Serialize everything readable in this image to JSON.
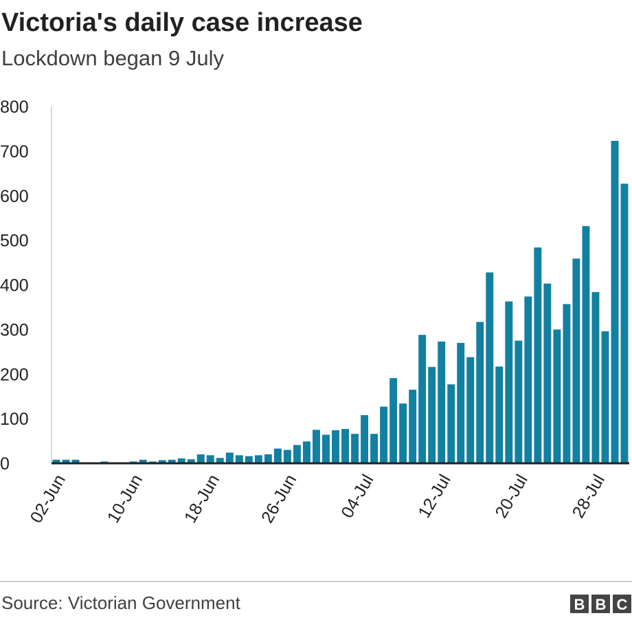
{
  "chart_data": {
    "type": "bar",
    "title": "Victoria's daily case increase",
    "subtitle": "Lockdown began 9 July",
    "source": "Source: Victorian Government",
    "logo": [
      "B",
      "B",
      "C"
    ],
    "color": "#1380a1",
    "categories": [
      "02-Jun",
      null,
      null,
      null,
      null,
      null,
      null,
      null,
      "10-Jun",
      null,
      null,
      null,
      null,
      null,
      null,
      null,
      "18-Jun",
      null,
      null,
      null,
      null,
      null,
      null,
      null,
      "26-Jun",
      null,
      null,
      null,
      null,
      null,
      null,
      null,
      "04-Jul",
      null,
      null,
      null,
      null,
      null,
      null,
      null,
      "12-Jul",
      null,
      null,
      null,
      null,
      null,
      null,
      null,
      "20-Jul",
      null,
      null,
      null,
      null,
      null,
      null,
      null,
      "28-Jul",
      null,
      null,
      null
    ],
    "values": [
      8,
      8,
      8,
      2,
      0,
      4,
      2,
      0,
      4,
      8,
      4,
      7,
      8,
      11,
      9,
      20,
      18,
      12,
      24,
      18,
      16,
      18,
      20,
      33,
      30,
      41,
      49,
      75,
      64,
      74,
      77,
      66,
      108,
      66,
      127,
      191,
      134,
      165,
      288,
      216,
      273,
      177,
      270,
      238,
      317,
      428,
      217,
      363,
      275,
      374,
      484,
      403,
      300,
      357,
      459,
      532,
      384,
      296,
      723,
      627
    ],
    "ylim": [
      0,
      800
    ],
    "yticks": [
      0,
      100,
      200,
      300,
      400,
      500,
      600,
      700,
      800
    ],
    "grid": false
  }
}
